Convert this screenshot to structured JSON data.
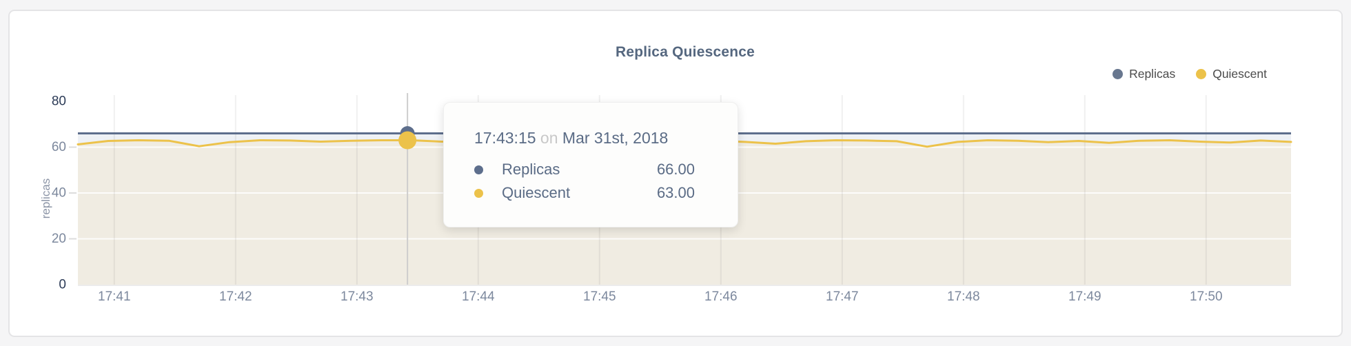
{
  "page": {
    "title": "Replica Quiescence"
  },
  "legend": [
    {
      "label": "Replicas",
      "color": "#68778f"
    },
    {
      "label": "Quiescent",
      "color": "#ecc24a"
    }
  ],
  "tooltip": {
    "time": "17:43:15",
    "separator": "on",
    "date": "Mar 31st, 2018",
    "rows": [
      {
        "label": "Replicas",
        "value": "66.00",
        "color": "#5d6e8c"
      },
      {
        "label": "Quiescent",
        "value": "63.00",
        "color": "#ecc24a"
      }
    ]
  },
  "chart_data": {
    "type": "area",
    "title": "Replica Quiescence",
    "ylabel": "replicas",
    "xlabel": "",
    "ylim": [
      0,
      80
    ],
    "yticks": [
      0,
      20,
      40,
      60,
      80
    ],
    "grid": true,
    "legend_position": "top-right",
    "time_domain": {
      "start": "17:40:42",
      "end": "17:50:42",
      "seconds": 600
    },
    "xticks": [
      {
        "label": "17:41",
        "t": 18
      },
      {
        "label": "17:42",
        "t": 78
      },
      {
        "label": "17:43",
        "t": 138
      },
      {
        "label": "17:44",
        "t": 198
      },
      {
        "label": "17:45",
        "t": 258
      },
      {
        "label": "17:46",
        "t": 318
      },
      {
        "label": "17:47",
        "t": 378
      },
      {
        "label": "17:48",
        "t": 438
      },
      {
        "label": "17:49",
        "t": 498
      },
      {
        "label": "17:50",
        "t": 558
      }
    ],
    "series": [
      {
        "name": "Replicas",
        "type": "constant",
        "value": 66,
        "color": "#5d6e8c",
        "fill": "#eef1f5",
        "line_width": 3
      },
      {
        "name": "Quiescent",
        "type": "line-area",
        "color": "#ecc24a",
        "fill": "#f0ece2",
        "line_width": 3,
        "t": [
          0,
          15,
          30,
          45,
          60,
          75,
          90,
          105,
          120,
          135,
          150,
          165,
          180,
          195,
          210,
          225,
          240,
          255,
          270,
          285,
          300,
          315,
          330,
          345,
          360,
          375,
          390,
          405,
          420,
          435,
          450,
          465,
          480,
          495,
          510,
          525,
          540,
          555,
          570,
          585,
          600
        ],
        "v": [
          61.2,
          62.7,
          63,
          62.8,
          60.4,
          62.2,
          63,
          62.9,
          62.4,
          62.8,
          63,
          63,
          62.4,
          62.8,
          62.2,
          63,
          62.9,
          61.8,
          62.6,
          63,
          62.4,
          62.8,
          62.3,
          61.5,
          62.6,
          63,
          62.9,
          62.6,
          60.2,
          62.3,
          63,
          62.8,
          62.2,
          62.7,
          61.9,
          62.8,
          63,
          62.4,
          62,
          62.9,
          62.3
        ],
        "unit": ""
      }
    ],
    "hover_point": {
      "t": 163,
      "time": "17:43:15",
      "date": "Mar 31st, 2018",
      "values": {
        "Replicas": 66.0,
        "Quiescent": 63.0
      }
    }
  }
}
